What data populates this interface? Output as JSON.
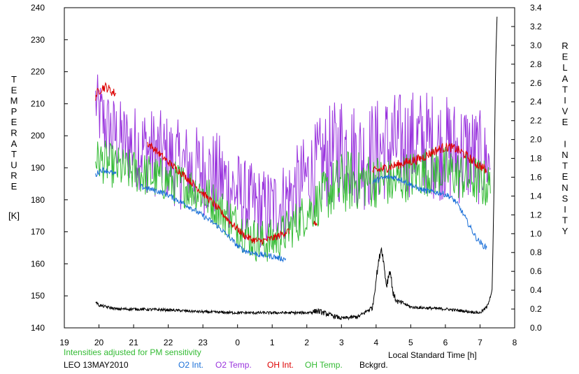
{
  "chart_data": {
    "type": "line",
    "left_axis": {
      "label_letters": [
        "T",
        "E",
        "M",
        "P",
        "E",
        "R",
        "A",
        "T",
        "U",
        "R",
        "E"
      ],
      "unit": "[K]",
      "range": [
        140,
        240
      ],
      "ticks": [
        "140",
        "150",
        "160",
        "170",
        "180",
        "190",
        "200",
        "210",
        "220",
        "230",
        "240"
      ]
    },
    "right_axis": {
      "label_letters": [
        "R",
        "E",
        "L",
        "A",
        "T",
        "I",
        "V",
        "E",
        "",
        "I",
        "N",
        "T",
        "E",
        "N",
        "S",
        "I",
        "T",
        "Y"
      ],
      "range": [
        0.0,
        3.4
      ],
      "ticks": [
        "0.0",
        "0.2",
        "0.4",
        "0.6",
        "0.8",
        "1.0",
        "1.2",
        "1.4",
        "1.6",
        "1.8",
        "2.0",
        "2.2",
        "2.4",
        "2.6",
        "2.8",
        "3.0",
        "3.2",
        "3.4"
      ]
    },
    "x_axis": {
      "label": "Local Standard Time [h]",
      "range": [
        19,
        32
      ],
      "tick_labels": [
        "19",
        "20",
        "21",
        "22",
        "23",
        "0",
        "1",
        "2",
        "3",
        "4",
        "5",
        "6",
        "7",
        "8"
      ]
    },
    "note": "Intensities adjusted for PM sensitivity",
    "station_date": "LEO 13MAY2010",
    "colors": {
      "o2_int": "#1a6fd8",
      "o2_temp": "#9933dd",
      "oh_int": "#dd0000",
      "oh_temp": "#33bb33",
      "bckgrd": "#000000",
      "note": "#33bb33"
    },
    "legend": [
      {
        "key": "o2_int",
        "label": "O2 Int."
      },
      {
        "key": "o2_temp",
        "label": "O2 Temp."
      },
      {
        "key": "oh_int",
        "label": "OH Int."
      },
      {
        "key": "oh_temp",
        "label": "OH Temp."
      },
      {
        "key": "bckgrd",
        "label": "Bckgrd."
      }
    ],
    "series": [
      {
        "key": "o2_temp",
        "axis": "left",
        "segments": [
          {
            "x": [
              19.9,
              20.0,
              20.1,
              20.2,
              20.3,
              20.5,
              20.7,
              21.0,
              21.3,
              21.5,
              21.8,
              22.0,
              22.3,
              22.6,
              23.0,
              23.3,
              23.6,
              23.9,
              24.2,
              24.5,
              24.8,
              25.1,
              25.4,
              25.7,
              26.0,
              26.3,
              26.6,
              26.9,
              27.0,
              27.2,
              27.4,
              27.6,
              27.8,
              28.0,
              28.2,
              28.5,
              28.8,
              29.1,
              29.4,
              29.7,
              30.0,
              30.3,
              30.6,
              30.8,
              31.0,
              31.2,
              31.3
            ],
            "y": [
              211,
              207,
              205,
              203,
              202,
              200,
              198,
              197,
              196,
              195,
              194,
              193,
              191,
              190,
              189,
              188,
              186,
              183,
              180,
              178,
              177,
              178,
              180,
              183,
              187,
              190,
              193,
              195,
              197,
              196,
              194,
              193,
              194,
              195,
              196,
              197,
              197,
              198,
              198,
              197,
              196,
              195,
              195,
              194,
              193,
              192,
              191
            ],
            "amp": [
              10,
              11,
              12,
              12,
              12,
              12,
              13,
              13,
              14,
              14,
              14,
              14,
              14,
              14,
              14,
              14,
              14,
              14,
              13,
              13,
              13,
              13,
              13,
              14,
              14,
              15,
              16,
              17,
              18,
              17,
              17,
              17,
              17,
              17,
              17,
              17,
              17,
              17,
              17,
              17,
              17,
              17,
              17,
              16,
              15,
              12,
              10
            ]
          }
        ]
      },
      {
        "key": "oh_temp",
        "axis": "left",
        "segments": [
          {
            "x": [
              19.9,
              20.1,
              20.3,
              20.5,
              20.8,
              21.0,
              21.3,
              21.6,
              22.0,
              22.3,
              22.6,
              23.0,
              23.3,
              23.6,
              24.0,
              24.3,
              24.6,
              24.9,
              25.2,
              25.5,
              25.8,
              26.1,
              26.4,
              26.7,
              27.0,
              27.3,
              27.6,
              27.9,
              28.2,
              28.5,
              28.8,
              29.1,
              29.4,
              29.7,
              30.0,
              30.3,
              30.6,
              30.9,
              31.1,
              31.3
            ],
            "y": [
              193,
              192,
              191,
              190,
              189,
              189,
              188,
              187,
              186,
              185,
              184,
              182,
              179,
              176,
              172,
              169,
              167,
              167,
              168,
              171,
              174,
              177,
              180,
              183,
              185,
              186,
              186,
              186,
              186,
              185,
              187,
              188,
              189,
              189,
              189,
              188,
              187,
              186,
              185,
              184
            ],
            "amp": [
              6,
              7,
              7,
              7,
              7,
              7,
              7,
              7,
              7,
              7,
              7,
              7,
              7,
              7,
              7,
              7,
              7,
              7,
              7,
              7,
              7,
              7,
              8,
              9,
              10,
              10,
              9,
              9,
              8,
              8,
              8,
              8,
              8,
              8,
              8,
              8,
              8,
              8,
              8,
              7
            ]
          }
        ]
      },
      {
        "key": "oh_int",
        "axis": "right",
        "segments": [
          {
            "x": [
              19.9,
              20.0,
              20.1,
              20.2,
              20.3,
              20.4,
              20.5
            ],
            "y": [
              2.46,
              2.52,
              2.55,
              2.56,
              2.53,
              2.5,
              2.49
            ],
            "amp": [
              0.05,
              0.05,
              0.05,
              0.05,
              0.05,
              0.05,
              0.05
            ]
          },
          {
            "x": [
              21.4,
              21.6,
              21.8,
              22.0,
              22.2,
              22.4,
              22.6,
              22.8,
              23.0,
              23.2,
              23.4,
              23.6,
              23.8,
              24.0,
              24.2,
              24.4,
              24.6,
              24.8,
              25.0,
              25.2,
              25.4,
              25.5
            ],
            "y": [
              1.96,
              1.9,
              1.83,
              1.76,
              1.7,
              1.64,
              1.57,
              1.5,
              1.43,
              1.36,
              1.28,
              1.2,
              1.12,
              1.05,
              0.98,
              0.94,
              0.92,
              0.93,
              0.95,
              0.98,
              1.02,
              1.03
            ],
            "amp": [
              0.04,
              0.04,
              0.04,
              0.04,
              0.04,
              0.04,
              0.04,
              0.04,
              0.04,
              0.04,
              0.04,
              0.04,
              0.04,
              0.04,
              0.04,
              0.04,
              0.04,
              0.04,
              0.04,
              0.04,
              0.04,
              0.04
            ]
          },
          {
            "x": [
              26.2,
              26.25,
              26.3
            ],
            "y": [
              1.1,
              1.12,
              1.08
            ],
            "amp": [
              0.03,
              0.03,
              0.03
            ]
          },
          {
            "x": [
              27.9,
              28.1,
              28.3,
              28.5,
              28.7,
              28.9,
              29.1,
              29.3,
              29.5,
              29.7,
              29.9,
              30.1,
              30.3,
              30.5,
              30.7,
              30.9,
              31.1,
              31.2
            ],
            "y": [
              1.66,
              1.68,
              1.7,
              1.72,
              1.74,
              1.76,
              1.78,
              1.8,
              1.84,
              1.88,
              1.91,
              1.92,
              1.9,
              1.86,
              1.8,
              1.74,
              1.7,
              1.65
            ],
            "amp": [
              0.05,
              0.05,
              0.05,
              0.05,
              0.05,
              0.05,
              0.05,
              0.05,
              0.05,
              0.05,
              0.05,
              0.05,
              0.05,
              0.05,
              0.05,
              0.05,
              0.05,
              0.05
            ]
          }
        ]
      },
      {
        "key": "o2_int",
        "axis": "right",
        "segments": [
          {
            "x": [
              19.9,
              20.0,
              20.1,
              20.2,
              20.3,
              20.4,
              20.5
            ],
            "y": [
              1.62,
              1.66,
              1.68,
              1.67,
              1.66,
              1.64,
              1.63
            ],
            "amp": [
              0.03,
              0.03,
              0.03,
              0.03,
              0.03,
              0.03,
              0.03
            ]
          },
          {
            "x": [
              21.2,
              21.4,
              21.6,
              21.8,
              22.0,
              22.2,
              22.4,
              22.6,
              22.8,
              23.0,
              23.2,
              23.4,
              23.6,
              23.8,
              24.0,
              24.2,
              24.4,
              24.6,
              24.8,
              25.0,
              25.2,
              25.4
            ],
            "y": [
              1.5,
              1.48,
              1.46,
              1.44,
              1.41,
              1.37,
              1.33,
              1.29,
              1.24,
              1.19,
              1.14,
              1.09,
              1.02,
              0.95,
              0.87,
              0.82,
              0.8,
              0.78,
              0.77,
              0.76,
              0.74,
              0.73
            ],
            "amp": [
              0.03,
              0.03,
              0.03,
              0.03,
              0.03,
              0.03,
              0.03,
              0.03,
              0.03,
              0.03,
              0.03,
              0.03,
              0.03,
              0.03,
              0.03,
              0.03,
              0.03,
              0.03,
              0.03,
              0.03,
              0.03,
              0.03
            ]
          },
          {
            "x": [
              27.9,
              28.1,
              28.3,
              28.5,
              28.7,
              28.9,
              29.1,
              29.3,
              29.5,
              29.7,
              29.9,
              30.1,
              30.3,
              30.5,
              30.7,
              30.9,
              31.1,
              31.2
            ],
            "y": [
              1.55,
              1.58,
              1.6,
              1.6,
              1.58,
              1.54,
              1.5,
              1.47,
              1.45,
              1.44,
              1.43,
              1.4,
              1.34,
              1.22,
              1.08,
              0.95,
              0.87,
              0.85
            ],
            "amp": [
              0.03,
              0.03,
              0.03,
              0.03,
              0.03,
              0.03,
              0.03,
              0.03,
              0.03,
              0.03,
              0.03,
              0.03,
              0.03,
              0.03,
              0.03,
              0.03,
              0.03,
              0.03
            ]
          }
        ]
      },
      {
        "key": "bckgrd",
        "axis": "right",
        "segments": [
          {
            "x": [
              19.9,
              20.0,
              20.5,
              21.0,
              22.0,
              23.0,
              24.0,
              25.0,
              26.0,
              26.3,
              27.0,
              27.5,
              27.9,
              28.0,
              28.1,
              28.15,
              28.2,
              28.3,
              28.4,
              28.5,
              28.6,
              28.8,
              29.0,
              30.0,
              31.0,
              31.2,
              31.35,
              31.4,
              31.45,
              31.5
            ],
            "y": [
              0.28,
              0.24,
              0.2,
              0.2,
              0.19,
              0.17,
              0.16,
              0.16,
              0.16,
              0.18,
              0.1,
              0.12,
              0.22,
              0.52,
              0.76,
              0.85,
              0.75,
              0.45,
              0.62,
              0.35,
              0.28,
              0.26,
              0.22,
              0.2,
              0.16,
              0.22,
              0.4,
              1.4,
              2.8,
              3.4
            ],
            "amp": [
              0.01,
              0.015,
              0.015,
              0.015,
              0.015,
              0.015,
              0.015,
              0.015,
              0.015,
              0.03,
              0.02,
              0.02,
              0.03,
              0.04,
              0.04,
              0.03,
              0.04,
              0.05,
              0.05,
              0.04,
              0.03,
              0.02,
              0.015,
              0.015,
              0.015,
              0.02,
              0.02,
              0.0,
              0.0,
              0.0
            ]
          }
        ]
      }
    ]
  }
}
